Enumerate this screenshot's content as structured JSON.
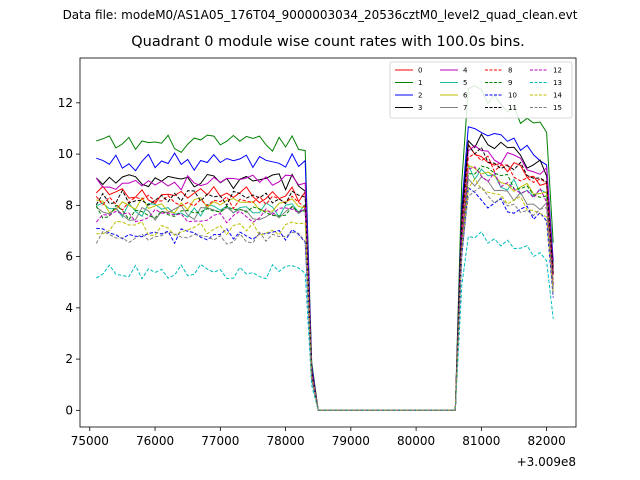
{
  "figure": {
    "suptitle": "Data file: modeM0/AS1A05_176T04_9000003034_20536cztM0_level2_quad_clean.evt"
  },
  "chart_data": {
    "type": "line",
    "title": "Quadrant 0 module wise count rates with 100.0s bins.",
    "xlabel": "",
    "ylabel": "",
    "x_offset_label": "+3.009e8",
    "xlim": [
      74850,
      82450
    ],
    "ylim": [
      -0.65,
      13.75
    ],
    "xticks": [
      75000,
      76000,
      77000,
      78000,
      79000,
      80000,
      81000,
      82000
    ],
    "xtick_labels": [
      "75000",
      "76000",
      "77000",
      "78000",
      "79000",
      "80000",
      "81000",
      "82000"
    ],
    "yticks": [
      0,
      2,
      4,
      6,
      8,
      10,
      12
    ],
    "ytick_labels": [
      "0",
      "2",
      "4",
      "6",
      "8",
      "10",
      "12"
    ],
    "grid": false,
    "legend_position": "top-right",
    "legend_columns": 4,
    "x_start": 75100,
    "x_step": 100,
    "n_points": 71,
    "series": [
      {
        "name": "0",
        "color": "#ff0000",
        "dash": "solid",
        "level1": 8.4,
        "level2": 9.7,
        "jitter": 0.35
      },
      {
        "name": "1",
        "color": "#008000",
        "dash": "solid",
        "level1": 10.4,
        "level2": 11.9,
        "jitter": 0.35
      },
      {
        "name": "2",
        "color": "#0000ff",
        "dash": "solid",
        "level1": 9.7,
        "level2": 10.6,
        "jitter": 0.35
      },
      {
        "name": "3",
        "color": "#000000",
        "dash": "solid",
        "level1": 8.9,
        "level2": 10.2,
        "jitter": 0.35
      },
      {
        "name": "4",
        "color": "#bf00bf",
        "dash": "solid",
        "level1": 8.9,
        "level2": 9.9,
        "jitter": 0.3
      },
      {
        "name": "5",
        "color": "#1abc9c",
        "dash": "solid",
        "level1": 7.8,
        "level2": 8.9,
        "jitter": 0.3
      },
      {
        "name": "6",
        "color": "#bfbf00",
        "dash": "solid",
        "level1": 8.0,
        "level2": 9.0,
        "jitter": 0.3
      },
      {
        "name": "7",
        "color": "#808080",
        "dash": "solid",
        "level1": 7.7,
        "level2": 8.6,
        "jitter": 0.3
      },
      {
        "name": "8",
        "color": "#ff0000",
        "dash": "dashed",
        "level1": 8.1,
        "level2": 9.5,
        "jitter": 0.3
      },
      {
        "name": "9",
        "color": "#008000",
        "dash": "dashed",
        "level1": 7.7,
        "level2": 9.0,
        "jitter": 0.3
      },
      {
        "name": "10",
        "color": "#0000ff",
        "dash": "dashed",
        "level1": 6.8,
        "level2": 8.0,
        "jitter": 0.3
      },
      {
        "name": "11",
        "color": "#000000",
        "dash": "dashed",
        "level1": 8.3,
        "level2": 9.7,
        "jitter": 0.3
      },
      {
        "name": "12",
        "color": "#bf00bf",
        "dash": "dashed",
        "level1": 7.6,
        "level2": 8.9,
        "jitter": 0.3
      },
      {
        "name": "13",
        "color": "#00bfbf",
        "dash": "dashed",
        "level1": 5.4,
        "level2": 6.5,
        "jitter": 0.3
      },
      {
        "name": "14",
        "color": "#bfbf00",
        "dash": "dashed",
        "level1": 7.1,
        "level2": 8.4,
        "jitter": 0.3
      },
      {
        "name": "15",
        "color": "#808080",
        "dash": "dashed",
        "level1": 6.7,
        "level2": 8.2,
        "jitter": 0.3
      }
    ],
    "segments": [
      {
        "from": 75100,
        "to": 78300,
        "state": "level1"
      },
      {
        "from": 78500,
        "to": 80600,
        "state": "zero"
      },
      {
        "from": 80800,
        "to": 82000,
        "state": "level2"
      }
    ]
  }
}
